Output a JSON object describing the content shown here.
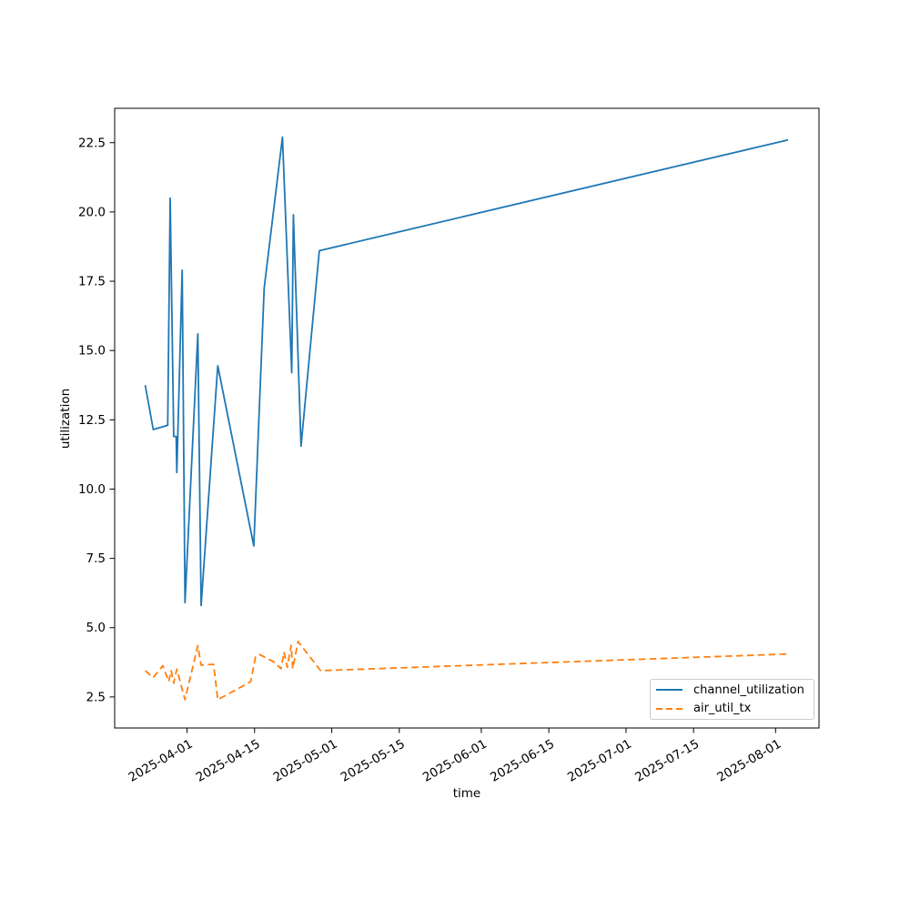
{
  "figure": {
    "background": "#ffffff",
    "border_color": "#000000",
    "tick_label_color": "#000000"
  },
  "chart_data": {
    "type": "line",
    "title": "",
    "xlabel": "time",
    "ylabel": "utilization",
    "grid": false,
    "legend_position": "lower right",
    "x_ticks": [
      "2025-04-01",
      "2025-04-15",
      "2025-05-01",
      "2025-05-15",
      "2025-06-01",
      "2025-06-15",
      "2025-07-01",
      "2025-07-15",
      "2025-08-01"
    ],
    "x_tick_rotation_deg": 30,
    "y_ticks": [
      2.5,
      5.0,
      7.5,
      10.0,
      12.5,
      15.0,
      17.5,
      20.0,
      22.5
    ],
    "xlim": [
      "2025-03-17",
      "2025-08-10"
    ],
    "ylim": [
      1.38,
      23.74
    ],
    "series": [
      {
        "name": "channel_utilization",
        "color": "#1f77b4",
        "line_style": "solid",
        "points": [
          [
            "2025-03-23T08:00",
            13.75
          ],
          [
            "2025-03-25T00:00",
            12.15
          ],
          [
            "2025-03-28T00:00",
            12.3
          ],
          [
            "2025-03-28T12:00",
            20.5
          ],
          [
            "2025-03-29T06:00",
            11.9
          ],
          [
            "2025-03-29T18:00",
            11.9
          ],
          [
            "2025-03-29T21:00",
            10.6
          ],
          [
            "2025-03-31T00:00",
            17.9
          ],
          [
            "2025-03-31T14:00",
            5.9
          ],
          [
            "2025-04-03T06:00",
            15.6
          ],
          [
            "2025-04-03T22:00",
            5.8
          ],
          [
            "2025-04-07T09:00",
            14.45
          ],
          [
            "2025-04-14T20:00",
            7.95
          ],
          [
            "2025-04-17T00:00",
            17.25
          ],
          [
            "2025-04-20T19:00",
            22.7
          ],
          [
            "2025-04-22T17:00",
            14.2
          ],
          [
            "2025-04-23T01:00",
            19.9
          ],
          [
            "2025-04-24T15:00",
            11.55
          ],
          [
            "2025-04-28T10:00",
            18.6
          ],
          [
            "2025-08-03T14:00",
            22.6
          ]
        ]
      },
      {
        "name": "air_util_tx",
        "color": "#ff7f0e",
        "line_style": "dashed",
        "points": [
          [
            "2025-03-23T08:00",
            3.45
          ],
          [
            "2025-03-25T00:00",
            3.2
          ],
          [
            "2025-03-27T00:00",
            3.63
          ],
          [
            "2025-03-28T05:00",
            3.05
          ],
          [
            "2025-03-28T17:00",
            3.45
          ],
          [
            "2025-03-29T06:00",
            3.0
          ],
          [
            "2025-03-29T21:00",
            3.5
          ],
          [
            "2025-03-31T14:00",
            2.4
          ],
          [
            "2025-04-03T06:00",
            4.35
          ],
          [
            "2025-04-03T22:00",
            3.65
          ],
          [
            "2025-04-06T12:00",
            3.68
          ],
          [
            "2025-04-07T09:00",
            2.4
          ],
          [
            "2025-04-14T05:00",
            3.05
          ],
          [
            "2025-04-15T05:00",
            3.95
          ],
          [
            "2025-04-16T02:00",
            4.03
          ],
          [
            "2025-04-18T22:00",
            3.77
          ],
          [
            "2025-04-20T12:00",
            3.52
          ],
          [
            "2025-04-21T02:00",
            4.12
          ],
          [
            "2025-04-21T19:00",
            3.57
          ],
          [
            "2025-04-22T14:00",
            4.36
          ],
          [
            "2025-04-22T22:00",
            3.52
          ],
          [
            "2025-04-24T00:00",
            4.5
          ],
          [
            "2025-04-28T17:00",
            3.45
          ],
          [
            "2025-08-03T14:00",
            4.05
          ]
        ]
      }
    ]
  }
}
